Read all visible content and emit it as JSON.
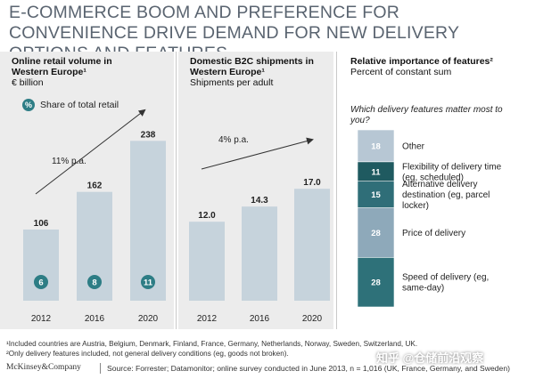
{
  "title": "E-COMMERCE BOOM AND PREFERENCE FOR CONVENIENCE DRIVE DEMAND FOR NEW DELIVERY OPTIONS AND FEATURES",
  "colors": {
    "bar": "#c6d3dc",
    "teal": "#2d7d85",
    "panel": "#ececec"
  },
  "chart_data": [
    {
      "type": "bar",
      "title": "Online retail volume in Western Europe¹",
      "subtitle": "€ billion",
      "categories": [
        "2012",
        "2016",
        "2020"
      ],
      "values": [
        106,
        162,
        238
      ],
      "share_of_total_retail": [
        6,
        8,
        11
      ],
      "legend": "Share of total retail",
      "growth_annotation": "11% p.a.",
      "ylim": [
        0,
        260
      ]
    },
    {
      "type": "bar",
      "title": "Domestic B2C shipments in Western Europe¹",
      "subtitle": "Shipments per adult",
      "categories": [
        "2012",
        "2016",
        "2020"
      ],
      "values": [
        12.0,
        14.3,
        17.0
      ],
      "value_labels": [
        "12.0",
        "14.3",
        "17.0"
      ],
      "growth_annotation": "4% p.a.",
      "ylim": [
        0,
        18
      ]
    },
    {
      "type": "bar",
      "title": "Relative importance of features²",
      "subtitle": "Percent of constant sum",
      "question": "Which delivery features matter most to you?",
      "stacked": true,
      "segments": [
        {
          "label": "Speed of delivery (eg, same-day)",
          "value": 28,
          "color": "#2e7179"
        },
        {
          "label": "Price of delivery",
          "value": 28,
          "color": "#8ea9ba"
        },
        {
          "label": "Alternative delivery destination (eg, parcel locker)",
          "value": 15,
          "color": "#2f6e78"
        },
        {
          "label": "Flexibility of delivery time (eg, scheduled)",
          "value": 11,
          "color": "#1f5a60"
        },
        {
          "label": "Other",
          "value": 18,
          "color": "#b7c7d4"
        }
      ]
    }
  ],
  "footnotes": [
    "¹Included countries are Austria, Belgium, Denmark, Finland, France, Germany, Netherlands, Norway, Sweden, Switzerland, UK.",
    "²Only delivery features included, not general delivery conditions (eg, goods not broken)."
  ],
  "logo": "McKinsey&Company",
  "source": "Source: Forrester; Datamonitor; online survey conducted in June 2013, n = 1,016 (UK, France, Germany, and Sweden)",
  "watermark": "知乎 @仓储前沿观察"
}
